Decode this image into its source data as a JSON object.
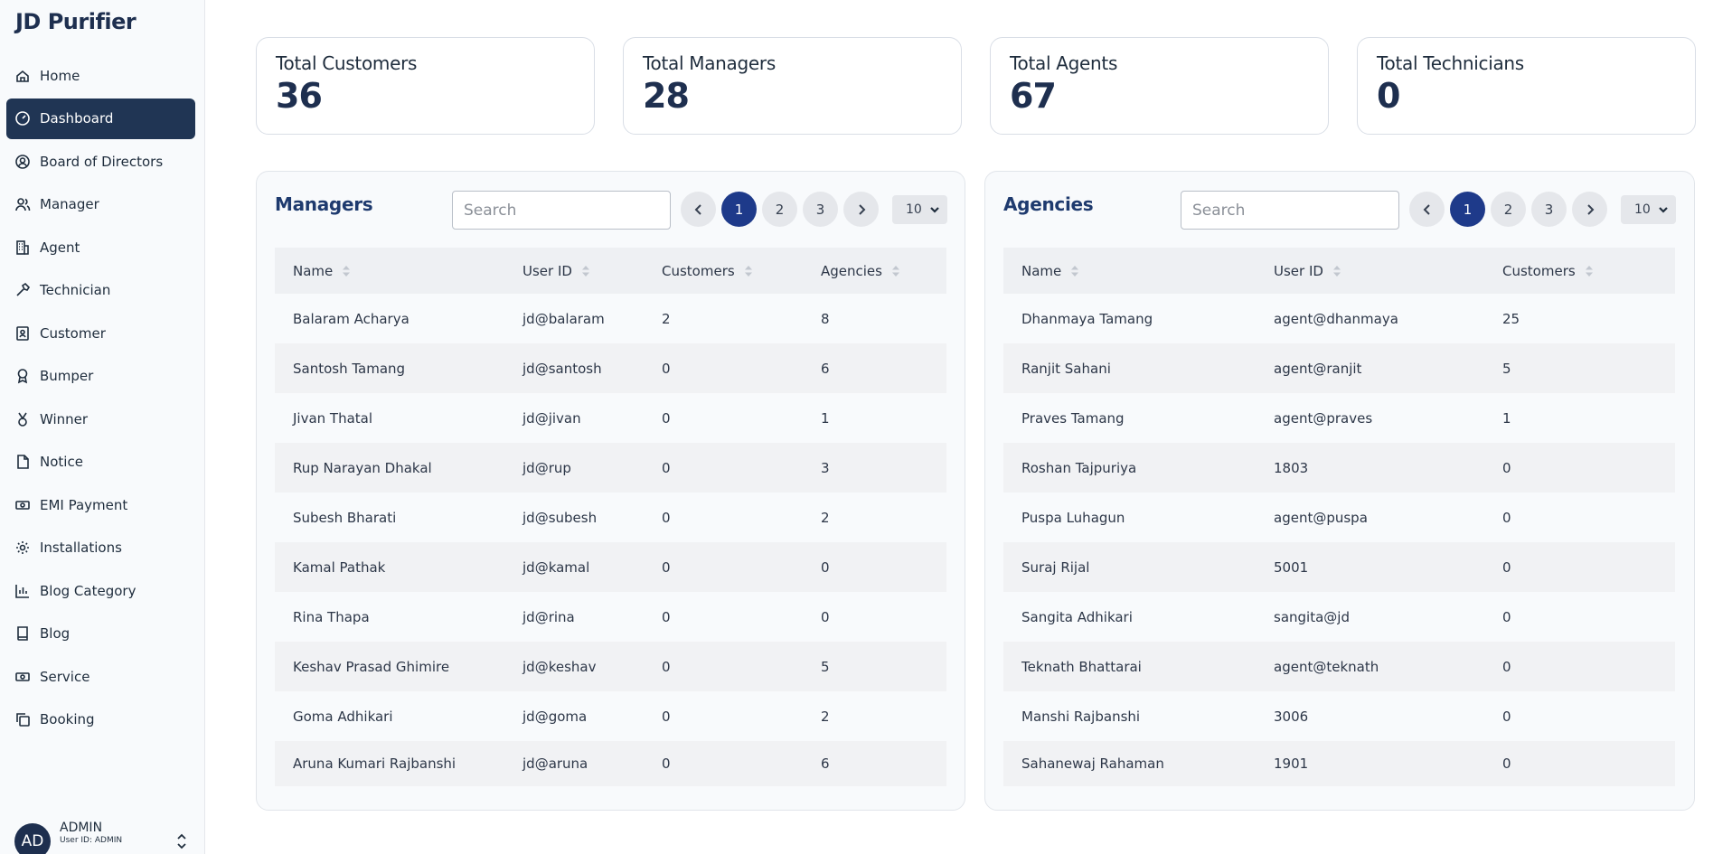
{
  "brand": "JD Purifier",
  "sidebar": {
    "items": [
      {
        "label": "Home",
        "icon": "home-icon"
      },
      {
        "label": "Dashboard",
        "icon": "gauge-icon",
        "active": true
      },
      {
        "label": "Board of Directors",
        "icon": "user-circle-icon"
      },
      {
        "label": "Manager",
        "icon": "users-icon"
      },
      {
        "label": "Agent",
        "icon": "building-icon"
      },
      {
        "label": "Technician",
        "icon": "hammer-icon"
      },
      {
        "label": "Customer",
        "icon": "contact-icon"
      },
      {
        "label": "Bumper",
        "icon": "award-icon"
      },
      {
        "label": "Winner",
        "icon": "medal-icon"
      },
      {
        "label": "Notice",
        "icon": "file-icon"
      },
      {
        "label": "EMI Payment",
        "icon": "banknote-icon"
      },
      {
        "label": "Installations",
        "icon": "cog-icon"
      },
      {
        "label": "Blog Category",
        "icon": "chart-icon"
      },
      {
        "label": "Blog",
        "icon": "book-icon"
      },
      {
        "label": "Service",
        "icon": "banknote-icon"
      },
      {
        "label": "Booking",
        "icon": "copy-icon"
      }
    ]
  },
  "user": {
    "initials": "AD",
    "name": "ADMIN",
    "id_text": "User ID: ADMIN"
  },
  "stats": [
    {
      "label": "Total Customers",
      "value": "36"
    },
    {
      "label": "Total Managers",
      "value": "28"
    },
    {
      "label": "Total Agents",
      "value": "67"
    },
    {
      "label": "Total Technicians",
      "value": "0"
    }
  ],
  "managers": {
    "title": "Managers",
    "search_placeholder": "Search",
    "pages": [
      "1",
      "2",
      "3"
    ],
    "current_page": "1",
    "per_page": "10",
    "columns": [
      "Name",
      "User ID",
      "Customers",
      "Agencies"
    ],
    "rows": [
      [
        "Balaram Acharya",
        "jd@balaram",
        "2",
        "8"
      ],
      [
        "Santosh Tamang",
        "jd@santosh",
        "0",
        "6"
      ],
      [
        "Jivan Thatal",
        "jd@jivan",
        "0",
        "1"
      ],
      [
        "Rup Narayan Dhakal",
        "jd@rup",
        "0",
        "3"
      ],
      [
        "Subesh Bharati",
        "jd@subesh",
        "0",
        "2"
      ],
      [
        "Kamal Pathak",
        "jd@kamal",
        "0",
        "0"
      ],
      [
        "Rina Thapa",
        "jd@rina",
        "0",
        "0"
      ],
      [
        "Keshav Prasad Ghimire",
        "jd@keshav",
        "0",
        "5"
      ],
      [
        "Goma Adhikari",
        "jd@goma",
        "0",
        "2"
      ],
      [
        "Aruna Kumari Rajbanshi",
        "jd@aruna",
        "0",
        "6"
      ]
    ]
  },
  "agencies": {
    "title": "Agencies",
    "search_placeholder": "Search",
    "pages": [
      "1",
      "2",
      "3"
    ],
    "current_page": "1",
    "per_page": "10",
    "columns": [
      "Name",
      "User ID",
      "Customers"
    ],
    "rows": [
      [
        "Dhanmaya Tamang",
        "agent@dhanmaya",
        "25"
      ],
      [
        "Ranjit Sahani",
        "agent@ranjit",
        "5"
      ],
      [
        "Praves Tamang",
        "agent@praves",
        "1"
      ],
      [
        "Roshan Tajpuriya",
        "1803",
        "0"
      ],
      [
        "Puspa Luhagun",
        "agent@puspa",
        "0"
      ],
      [
        "Suraj Rijal",
        "5001",
        "0"
      ],
      [
        "Sangita Adhikari",
        "sangita@jd",
        "0"
      ],
      [
        "Teknath Bhattarai",
        "agent@teknath",
        "0"
      ],
      [
        "Manshi Rajbanshi",
        "3006",
        "0"
      ],
      [
        "Sahanewaj Rahaman",
        "1901",
        "0"
      ]
    ]
  },
  "colors": {
    "primary": "#1e2f4f",
    "accent": "#1e3a8a",
    "active_nav": "#203554"
  }
}
